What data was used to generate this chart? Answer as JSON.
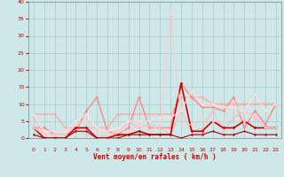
{
  "background_color": "#cce8e8",
  "grid_color": "#b0c8c8",
  "xlabel": "Vent moyen/en rafales ( km/h )",
  "xlabel_color": "#cc0000",
  "ylabel_color": "#cc0000",
  "xlim": [
    -0.5,
    23.5
  ],
  "ylim": [
    0,
    40
  ],
  "yticks": [
    0,
    5,
    10,
    15,
    20,
    25,
    30,
    35,
    40
  ],
  "xticks": [
    0,
    1,
    2,
    3,
    4,
    5,
    6,
    7,
    8,
    9,
    10,
    11,
    12,
    13,
    14,
    15,
    16,
    17,
    18,
    19,
    20,
    21,
    22,
    23
  ],
  "series": [
    {
      "y": [
        7,
        7,
        7,
        3,
        3,
        3,
        3,
        3,
        7,
        7,
        7,
        7,
        7,
        7,
        12,
        12,
        12,
        10,
        10,
        10,
        10,
        10,
        10,
        10
      ],
      "color": "#ffaaaa",
      "lw": 1.0,
      "marker": "D",
      "ms": 1.8
    },
    {
      "y": [
        3,
        3,
        1,
        1,
        2,
        8,
        12,
        2,
        1,
        3,
        12,
        3,
        3,
        3,
        16,
        12,
        9,
        9,
        8,
        12,
        3,
        8,
        4,
        10
      ],
      "color": "#ff8888",
      "lw": 1.0,
      "marker": "D",
      "ms": 1.8
    },
    {
      "y": [
        6,
        1,
        1,
        1,
        3,
        1,
        0,
        1,
        1,
        5,
        3,
        4,
        3,
        1,
        8,
        2,
        3,
        8,
        2,
        6,
        8,
        6,
        3,
        3
      ],
      "color": "#ffbbbb",
      "lw": 0.8,
      "marker": "D",
      "ms": 1.8
    },
    {
      "y": [
        3,
        0,
        0,
        0,
        3,
        3,
        0,
        0,
        1,
        1,
        2,
        1,
        1,
        1,
        16,
        2,
        2,
        5,
        3,
        3,
        5,
        3,
        3,
        3
      ],
      "color": "#cc0000",
      "lw": 1.2,
      "marker": "D",
      "ms": 1.8
    },
    {
      "y": [
        1,
        0,
        0,
        0,
        2,
        2,
        0,
        0,
        0,
        1,
        1,
        1,
        1,
        1,
        0,
        1,
        1,
        2,
        1,
        1,
        2,
        1,
        1,
        1
      ],
      "color": "#aa0000",
      "lw": 0.8,
      "marker": "D",
      "ms": 1.5
    },
    {
      "y": [
        3,
        1,
        1,
        1,
        4,
        5,
        2,
        1,
        2,
        2,
        4,
        2,
        4,
        38,
        4,
        4,
        6,
        5,
        5,
        11,
        5,
        7,
        3,
        3
      ],
      "color": "#ffcccc",
      "lw": 0.8,
      "marker": "D",
      "ms": 1.8
    },
    {
      "y": [
        7,
        2,
        2,
        2,
        5,
        7,
        3,
        2,
        3,
        5,
        5,
        5,
        6,
        6,
        8,
        14,
        10,
        10,
        9,
        9,
        8,
        13,
        8,
        10
      ],
      "color": "#ffdddd",
      "lw": 1.0,
      "marker": "D",
      "ms": 1.8
    }
  ],
  "arrows": [
    "⇙",
    "↓",
    "↓",
    "↑",
    "↖",
    "↙",
    "↓",
    "↓",
    "→",
    "↖",
    "↙",
    "↓",
    "←",
    "↓",
    "↓",
    "↑",
    "↓",
    "↓",
    "↓",
    "↓",
    "↗",
    "↖",
    "",
    ""
  ]
}
